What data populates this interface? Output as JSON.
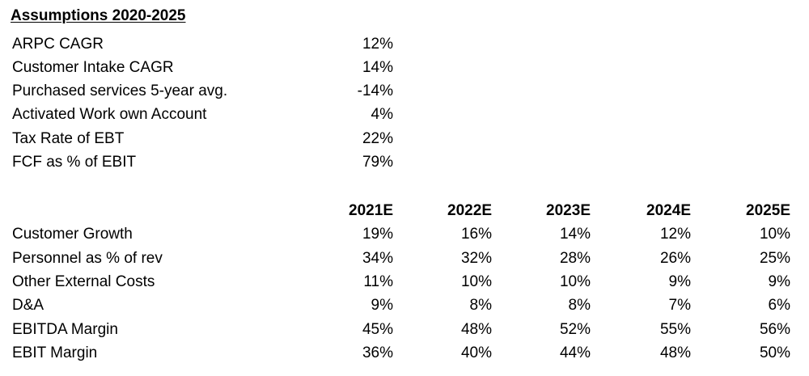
{
  "assumptions": {
    "title": "Assumptions 2020-2025",
    "rows": [
      {
        "label": "ARPC CAGR",
        "value": "12%"
      },
      {
        "label": "Customer Intake CAGR",
        "value": "14%"
      },
      {
        "label": "Purchased services 5-year avg.",
        "value": "-14%"
      },
      {
        "label": "Activated Work own Account",
        "value": "4%"
      },
      {
        "label": "Tax Rate of EBT",
        "value": "22%"
      },
      {
        "label": "FCF as % of EBIT",
        "value": "79%"
      }
    ]
  },
  "forecast": {
    "columns": [
      "2021E",
      "2022E",
      "2023E",
      "2024E",
      "2025E"
    ],
    "rows": [
      {
        "label": "Customer Growth",
        "values": [
          "19%",
          "16%",
          "14%",
          "12%",
          "10%"
        ]
      },
      {
        "label": "Personnel as % of rev",
        "values": [
          "34%",
          "32%",
          "28%",
          "26%",
          "25%"
        ]
      },
      {
        "label": "Other External Costs",
        "values": [
          "11%",
          "10%",
          "10%",
          "9%",
          "9%"
        ]
      },
      {
        "label": "D&A",
        "values": [
          "9%",
          "8%",
          "8%",
          "7%",
          "6%"
        ]
      },
      {
        "label": "EBITDA Margin",
        "values": [
          "45%",
          "48%",
          "52%",
          "55%",
          "56%"
        ]
      },
      {
        "label": "EBIT Margin",
        "values": [
          "36%",
          "40%",
          "44%",
          "48%",
          "50%"
        ]
      }
    ]
  }
}
